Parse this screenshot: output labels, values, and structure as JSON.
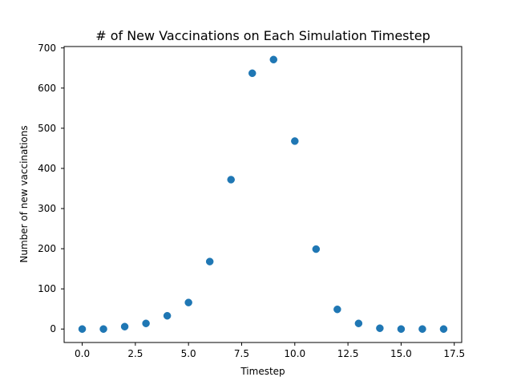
{
  "chart_data": {
    "type": "scatter",
    "title": "# of New Vaccinations on Each Simulation Timestep",
    "xlabel": "Timestep",
    "ylabel": "Number of new vaccinations",
    "x": [
      0,
      1,
      2,
      3,
      4,
      5,
      6,
      7,
      8,
      9,
      10,
      11,
      12,
      13,
      14,
      15,
      16,
      17
    ],
    "y": [
      0,
      0,
      6,
      14,
      33,
      66,
      168,
      372,
      637,
      671,
      468,
      199,
      49,
      14,
      2,
      0,
      0,
      0
    ],
    "xlim": [
      -0.85,
      17.85
    ],
    "ylim": [
      -33.5,
      703.5
    ],
    "x_ticks": [
      0.0,
      2.5,
      5.0,
      7.5,
      10.0,
      12.5,
      15.0,
      17.5
    ],
    "x_tick_labels": [
      "0.0",
      "2.5",
      "5.0",
      "7.5",
      "10.0",
      "12.5",
      "15.0",
      "17.5"
    ],
    "y_ticks": [
      0,
      100,
      200,
      300,
      400,
      500,
      600,
      700
    ],
    "y_tick_labels": [
      "0",
      "100",
      "200",
      "300",
      "400",
      "500",
      "600",
      "700"
    ],
    "grid": false,
    "legend": "none",
    "marker_color": "#1f77b4",
    "axis_color": "#000000",
    "background_color": "#ffffff"
  }
}
